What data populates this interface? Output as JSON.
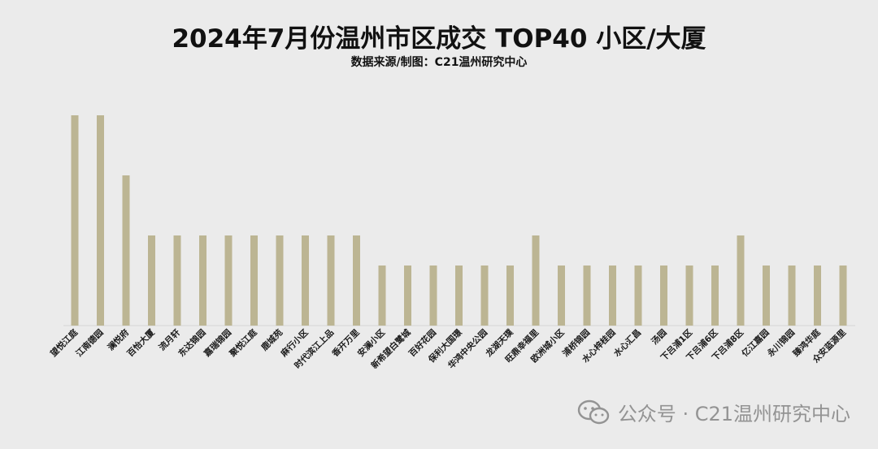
{
  "chart_data": {
    "type": "bar",
    "title": "2024年7月份温州市区成交 TOP40 小区/大厦",
    "subtitle": "数据来源/制图：C21温州研究中心",
    "xlabel": "",
    "ylabel": "",
    "ylim": [
      0,
      7
    ],
    "grid": false,
    "legend": "none",
    "bar_color": "#bcb593",
    "categories": [
      "望悦江庭",
      "江南德园",
      "澜悦府",
      "百怡大厦",
      "流月轩",
      "东达锦园",
      "嘉瑞锦园",
      "聚悦江庭",
      "鹿城苑",
      "麻行小区",
      "时代滨江上品",
      "香开万里",
      "安澜小区",
      "新希望白鹭城",
      "百好花园",
      "保利大国璟",
      "华鸿中央公园",
      "龙湖天璞",
      "旺鼎幸福里",
      "欧洲城小区",
      "浦桥锦园",
      "水心梓桂园",
      "水心汇昌",
      "汤园",
      "下吕浦1区",
      "下吕浦6区",
      "下吕浦8区",
      "亿江嘉园",
      "永川锦园",
      "臻鸿华庭",
      "众安蓝源里"
    ],
    "values": [
      7,
      7,
      5,
      3,
      3,
      3,
      3,
      3,
      3,
      3,
      3,
      3,
      2,
      2,
      2,
      2,
      2,
      2,
      3,
      2,
      2,
      2,
      2,
      2,
      2,
      2,
      3,
      2,
      2,
      2,
      2
    ]
  },
  "watermark": {
    "text": "公众号 · C21温州研究中心",
    "icon": "wechat-icon"
  }
}
